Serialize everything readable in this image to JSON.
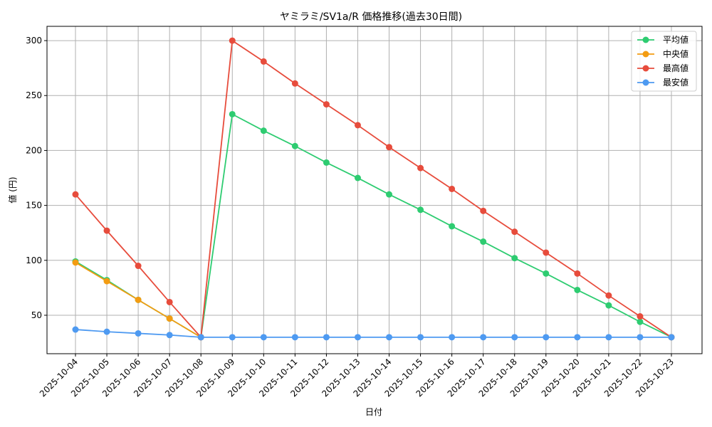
{
  "chart_data": {
    "type": "line",
    "title": "ヤミラミ/SV1a/R 価格推移(過去30日間)",
    "xlabel": "日付",
    "ylabel": "値 (円)",
    "categories": [
      "2025-10-04",
      "2025-10-05",
      "2025-10-06",
      "2025-10-07",
      "2025-10-08",
      "2025-10-09",
      "2025-10-10",
      "2025-10-11",
      "2025-10-12",
      "2025-10-13",
      "2025-10-14",
      "2025-10-15",
      "2025-10-16",
      "2025-10-17",
      "2025-10-18",
      "2025-10-19",
      "2025-10-20",
      "2025-10-21",
      "2025-10-22",
      "2025-10-23"
    ],
    "ylim": [
      15,
      313
    ],
    "yticks": [
      50,
      100,
      150,
      200,
      250,
      300
    ],
    "grid": true,
    "legend_position": "top-right",
    "series": [
      {
        "name": "平均値",
        "color": "#2ecc71",
        "values": [
          99,
          82,
          64,
          47,
          30,
          233,
          218,
          204,
          189,
          175,
          160,
          146,
          131,
          117,
          102,
          88,
          73,
          59,
          44,
          30
        ]
      },
      {
        "name": "中央値",
        "color": "#f39c12",
        "values": [
          98,
          81,
          64,
          47,
          30,
          null,
          null,
          null,
          null,
          null,
          null,
          null,
          null,
          null,
          null,
          null,
          null,
          null,
          null,
          null
        ]
      },
      {
        "name": "最高値",
        "color": "#e74c3c",
        "values": [
          160,
          127,
          95,
          62,
          30,
          300,
          281,
          261,
          242,
          223,
          203,
          184,
          165,
          145,
          126,
          107,
          88,
          68,
          49,
          30
        ]
      },
      {
        "name": "最安値",
        "color": "#4e9af1",
        "values": [
          37,
          35,
          33.5,
          32,
          30,
          30,
          30,
          30,
          30,
          30,
          30,
          30,
          30,
          30,
          30,
          30,
          30,
          30,
          30,
          30
        ]
      }
    ]
  }
}
